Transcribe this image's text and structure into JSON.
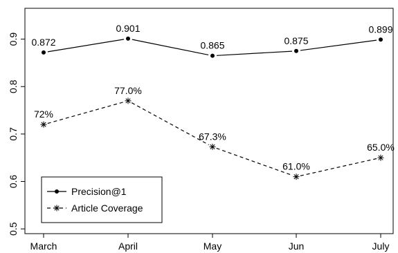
{
  "chart_data": {
    "type": "line",
    "categories": [
      "March",
      "April",
      "May",
      "Jun",
      "July"
    ],
    "series": [
      {
        "name": "Precision@1",
        "values": [
          0.872,
          0.901,
          0.865,
          0.875,
          0.899
        ],
        "labels": [
          "0.872",
          "0.901",
          "0.865",
          "0.875",
          "0.899"
        ],
        "marker": "dot",
        "line_style": "solid"
      },
      {
        "name": "Article Coverage",
        "values": [
          0.72,
          0.77,
          0.673,
          0.61,
          0.65
        ],
        "labels": [
          "72%",
          "77.0%",
          "67.3%",
          "61.0%",
          "65.0%"
        ],
        "marker": "asterisk",
        "line_style": "dashed"
      }
    ],
    "yticks": [
      0.5,
      0.6,
      0.7,
      0.8,
      0.9
    ],
    "yticks_labels": [
      "0.5",
      "0.6",
      "0.7",
      "0.8",
      "0.9"
    ],
    "ylim": [
      0.49,
      0.965
    ],
    "grid": false,
    "legend_position": "bottom-left",
    "colors": {
      "line": "#000000",
      "background": "#ffffff"
    }
  }
}
